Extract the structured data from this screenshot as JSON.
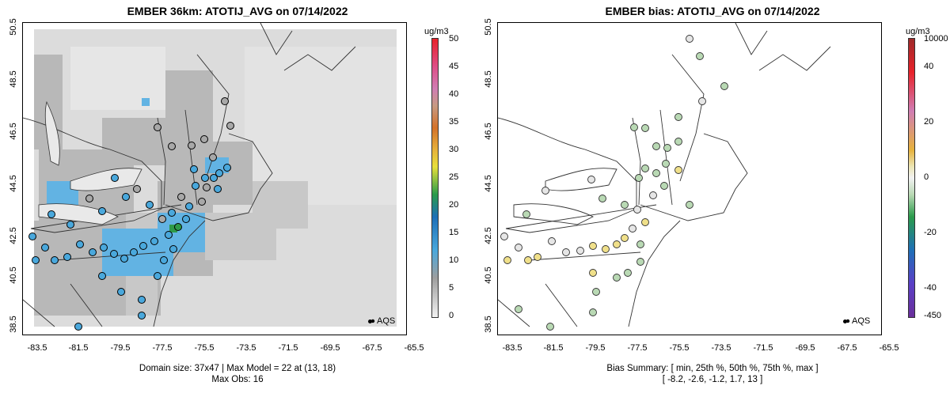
{
  "left": {
    "title": "EMBER 36km: ATOTIJ_AVG on 07/14/2022",
    "colorbar_unit": "ug/m3",
    "colorbar_ticks": [
      "50",
      "45",
      "40",
      "35",
      "30",
      "25",
      "20",
      "15",
      "10",
      "5",
      "0"
    ],
    "footer_line1": "Domain size: 37x47 | Max Model = 22 at (13, 18)",
    "footer_line2": "Max Obs: 16",
    "legend": "AQS"
  },
  "right": {
    "title": "EMBER bias: ATOTIJ_AVG on 07/14/2022",
    "colorbar_unit": "ug/m3",
    "colorbar_ticks": [
      "10000",
      "40",
      "20",
      "0",
      "-20",
      "-40",
      "-450"
    ],
    "footer_line1": "Bias Summary: [ min, 25th %, 50th %, 75th %, max ]",
    "footer_line2": "[ -8.2,  -2.6,  -1.2,  1.7,  13 ]",
    "legend": "AQS"
  },
  "axes": {
    "lat_ticks": [
      "50.5",
      "48.5",
      "46.5",
      "44.5",
      "42.5",
      "40.5",
      "38.5"
    ],
    "lon_ticks": [
      "-83.5",
      "-81.5",
      "-79.5",
      "-77.5",
      "-75.5",
      "-73.5",
      "-71.5",
      "-69.5",
      "-67.5",
      "-65.5"
    ]
  },
  "colors": {
    "aqs_blue": "#4aa8dc",
    "grid_gray": "#d2d2d2",
    "bias_green": "#b9d9b4",
    "bias_yellow": "#f0e08a"
  }
}
